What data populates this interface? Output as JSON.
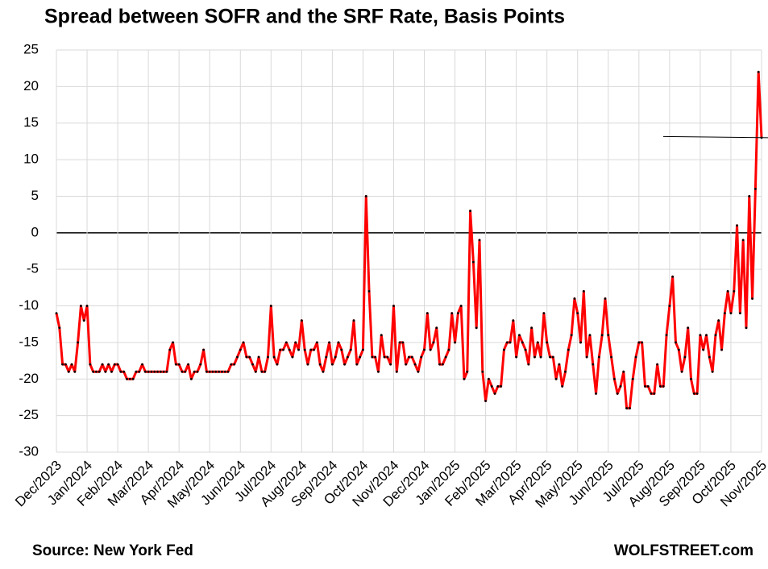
{
  "chart_data": {
    "type": "line",
    "title": "Spread between SOFR and the SRF Rate, Basis Points",
    "source": "Source: New York Fed",
    "credit": "WOLFSTREET.com",
    "categories": [
      "Dec/2023",
      null,
      null,
      null,
      null,
      null,
      null,
      null,
      null,
      null,
      "Jan/2024",
      null,
      null,
      null,
      null,
      null,
      null,
      null,
      null,
      null,
      "Feb/2024",
      null,
      null,
      null,
      null,
      null,
      null,
      null,
      null,
      null,
      "Mar/2024",
      null,
      null,
      null,
      null,
      null,
      null,
      null,
      null,
      null,
      "Apr/2024",
      null,
      null,
      null,
      null,
      null,
      null,
      null,
      null,
      null,
      "May/2024",
      null,
      null,
      null,
      null,
      null,
      null,
      null,
      null,
      null,
      "Jun/2024",
      null,
      null,
      null,
      null,
      null,
      null,
      null,
      null,
      null,
      "Jul/2024",
      null,
      null,
      null,
      null,
      null,
      null,
      null,
      null,
      null,
      "Aug/2024",
      null,
      null,
      null,
      null,
      null,
      null,
      null,
      null,
      null,
      "Sep/2024",
      null,
      null,
      null,
      null,
      null,
      null,
      null,
      null,
      null,
      "Oct/2024",
      null,
      null,
      null,
      null,
      null,
      null,
      null,
      null,
      null,
      "Nov/2024",
      null,
      null,
      null,
      null,
      null,
      null,
      null,
      null,
      null,
      "Dec/2024",
      null,
      null,
      null,
      null,
      null,
      null,
      null,
      null,
      null,
      "Jan/2025",
      null,
      null,
      null,
      null,
      null,
      null,
      null,
      null,
      null,
      "Feb/2025",
      null,
      null,
      null,
      null,
      null,
      null,
      null,
      null,
      null,
      "Mar/2025",
      null,
      null,
      null,
      null,
      null,
      null,
      null,
      null,
      null,
      "Apr/2025",
      null,
      null,
      null,
      null,
      null,
      null,
      null,
      null,
      null,
      "May/2025",
      null,
      null,
      null,
      null,
      null,
      null,
      null,
      null,
      null,
      "Jun/2025",
      null,
      null,
      null,
      null,
      null,
      null,
      null,
      null,
      null,
      "Jul/2025",
      null,
      null,
      null,
      null,
      null,
      null,
      null,
      null,
      null,
      "Aug/2025",
      null,
      null,
      null,
      null,
      null,
      null,
      null,
      null,
      null,
      "Sep/2025",
      null,
      null,
      null,
      null,
      null,
      null,
      null,
      null,
      null,
      "Oct/2025",
      null,
      null,
      null,
      null,
      null,
      null,
      null,
      null,
      null,
      "Nov/2025"
    ],
    "values": [
      -11,
      -13,
      -18,
      -18,
      -19,
      -18,
      -19,
      -15,
      -10,
      -12,
      -10,
      -18,
      -19,
      -19,
      -19,
      -18,
      -19,
      -18,
      -19,
      -18,
      -18,
      -19,
      -19,
      -20,
      -20,
      -20,
      -19,
      -19,
      -18,
      -19,
      -19,
      -19,
      -19,
      -19,
      -19,
      -19,
      -19,
      -16,
      -15,
      -18,
      -18,
      -19,
      -19,
      -18,
      -20,
      -19,
      -19,
      -18,
      -16,
      -19,
      -19,
      -19,
      -19,
      -19,
      -19,
      -19,
      -19,
      -18,
      -18,
      -17,
      -16,
      -15,
      -17,
      -17,
      -18,
      -19,
      -17,
      -19,
      -19,
      -17,
      -10,
      -17,
      -18,
      -16,
      -16,
      -15,
      -16,
      -17,
      -15,
      -16,
      -12,
      -16,
      -18,
      -16,
      -16,
      -15,
      -18,
      -19,
      -17,
      -15,
      -18,
      -17,
      -15,
      -16,
      -18,
      -17,
      -16,
      -12,
      -18,
      -17,
      -16,
      5,
      -8,
      -17,
      -17,
      -19,
      -14,
      -17,
      -17,
      -18,
      -10,
      -19,
      -15,
      -15,
      -18,
      -17,
      -17,
      -18,
      -19,
      -17,
      -16,
      -11,
      -16,
      -15,
      -13,
      -18,
      -18,
      -17,
      -16,
      -11,
      -15,
      -11,
      -10,
      -20,
      -19,
      3,
      -4,
      -13,
      -1,
      -19,
      -23,
      -20,
      -21,
      -22,
      -21,
      -21,
      -16,
      -15,
      -15,
      -12,
      -17,
      -14,
      -15,
      -16,
      -18,
      -13,
      -17,
      -15,
      -17,
      -11,
      -15,
      -17,
      -17,
      -20,
      -18,
      -21,
      -19,
      -16,
      -14,
      -9,
      -11,
      -15,
      -8,
      -17,
      -14,
      -18,
      -22,
      -17,
      -14,
      -9,
      -14,
      -17,
      -20,
      -22,
      -21,
      -19,
      -24,
      -24,
      -20,
      -17,
      -15,
      -15,
      -21,
      -21,
      -22,
      -22,
      -18,
      -21,
      -21,
      -14,
      -10,
      -6,
      -15,
      -16,
      -19,
      -17,
      -13,
      -20,
      -22,
      -22,
      -14,
      -16,
      -14,
      -17,
      -19,
      -14,
      -12,
      -16,
      -11,
      -8,
      -11,
      -8,
      1,
      -11,
      -1,
      -13,
      5,
      -9,
      6,
      22,
      13
    ],
    "color": "#ff0000",
    "marker_color": "#000000",
    "ylim": [
      -30,
      25
    ],
    "yticks": [
      -30,
      -25,
      -20,
      -15,
      -10,
      -5,
      0,
      5,
      10,
      15,
      20,
      25
    ],
    "grid": true
  }
}
